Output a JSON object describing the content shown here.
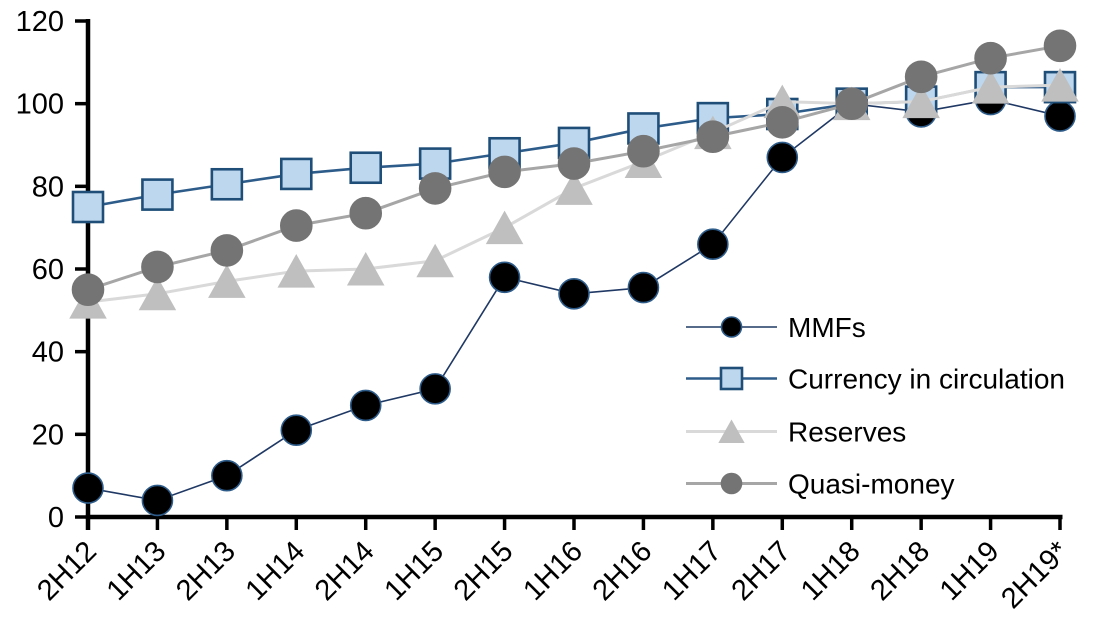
{
  "chart_data": {
    "type": "line",
    "title": "",
    "xlabel": "",
    "ylabel": "",
    "categories": [
      "2H12",
      "1H13",
      "2H13",
      "1H14",
      "2H14",
      "1H15",
      "2H15",
      "1H16",
      "2H16",
      "1H17",
      "2H17",
      "1H18",
      "2H18",
      "1H19",
      "2H19*"
    ],
    "series": [
      {
        "name": "MMFs",
        "marker": "circle",
        "line_color": "#1F3864",
        "marker_fill": "#000000",
        "marker_stroke": "#2E5C8A",
        "line_width": 1.6,
        "marker_size": 15,
        "values": [
          7,
          4,
          10,
          21,
          27,
          31,
          58,
          54,
          55.5,
          66,
          87,
          100,
          98,
          101,
          97
        ]
      },
      {
        "name": "Currency in circulation",
        "marker": "square",
        "line_color": "#2E5C8A",
        "marker_fill": "#BDD7EE",
        "marker_stroke": "#1F4E79",
        "line_width": 2.6,
        "marker_size": 15,
        "values": [
          75,
          78,
          80.5,
          83,
          84.5,
          85.5,
          88,
          90.5,
          94,
          96.5,
          97.5,
          100,
          100.5,
          104,
          104
        ]
      },
      {
        "name": "Reserves",
        "marker": "triangle",
        "line_color": "#D9D9D9",
        "marker_fill": "#BFBFBF",
        "marker_stroke": "#BFBFBF",
        "line_width": 3,
        "marker_size": 16,
        "values": [
          52,
          54,
          57,
          59.5,
          60,
          62,
          70,
          79.5,
          86,
          93,
          100.5,
          100,
          100.5,
          104,
          104.5
        ]
      },
      {
        "name": "Quasi-money",
        "marker": "circle",
        "line_color": "#A6A6A6",
        "marker_fill": "#747474",
        "marker_stroke": "#747474",
        "line_width": 3,
        "marker_size": 15.5,
        "values": [
          55,
          60.5,
          64.5,
          70.5,
          73.5,
          79.5,
          83.5,
          85.5,
          88.5,
          92,
          95.5,
          100,
          106.5,
          111,
          114
        ]
      }
    ],
    "ylim": [
      0,
      120
    ],
    "yticks": [
      0,
      20,
      40,
      60,
      80,
      100,
      120
    ],
    "grid": false,
    "legend_position": "inside-right",
    "axis_color": "#000000",
    "background_color": "#FFFFFF"
  }
}
